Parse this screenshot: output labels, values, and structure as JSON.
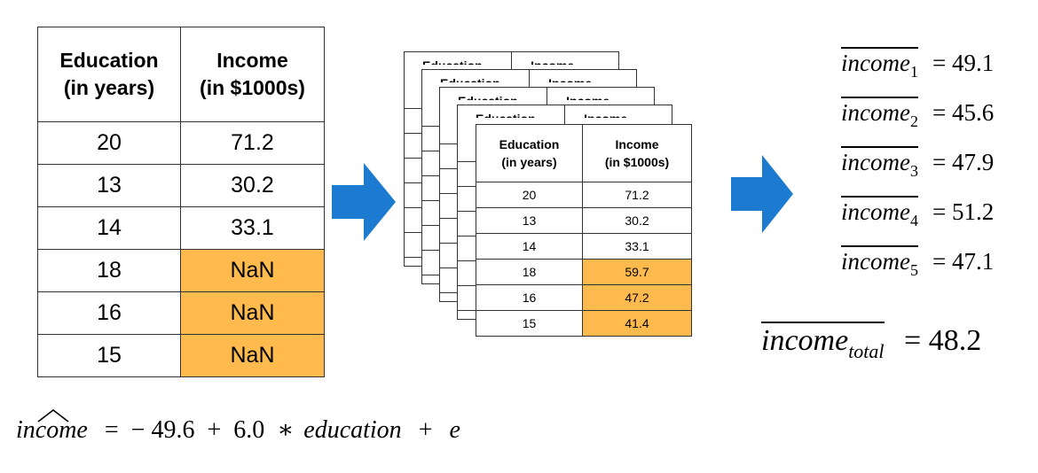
{
  "colors": {
    "highlight": "#ffba4d",
    "arrow": "#1c7bd1"
  },
  "main_table": {
    "headers": [
      "Education\n(in years)",
      "Income\n(in $1000s)"
    ],
    "rows": [
      [
        "20",
        "71.2"
      ],
      [
        "13",
        "30.2"
      ],
      [
        "14",
        "33.1"
      ],
      [
        "18",
        "NaN"
      ],
      [
        "16",
        "NaN"
      ],
      [
        "15",
        "NaN"
      ]
    ]
  },
  "imputed_table": {
    "headers": [
      "Education\n(in years)",
      "Income\n(in $1000s)"
    ],
    "rows": [
      [
        "20",
        "71.2"
      ],
      [
        "13",
        "30.2"
      ],
      [
        "14",
        "33.1"
      ],
      [
        "18",
        "59.7"
      ],
      [
        "16",
        "47.2"
      ],
      [
        "15",
        "41.4"
      ]
    ]
  },
  "means": [
    {
      "word": "income",
      "sub": "1",
      "value": "= 49.1"
    },
    {
      "word": "income",
      "sub": "2",
      "value": "= 45.6"
    },
    {
      "word": "income",
      "sub": "3",
      "value": "= 47.9"
    },
    {
      "word": "income",
      "sub": "4",
      "value": "= 51.2"
    },
    {
      "word": "income",
      "sub": "5",
      "value": "= 47.1"
    }
  ],
  "total": {
    "word": "income",
    "sub": "total",
    "value": "= 48.2"
  },
  "formula": {
    "lhs": "income",
    "rhs": "=  − 49.6  +  6.0  ∗",
    "var": "education",
    "plus": "+",
    "err": "e"
  }
}
